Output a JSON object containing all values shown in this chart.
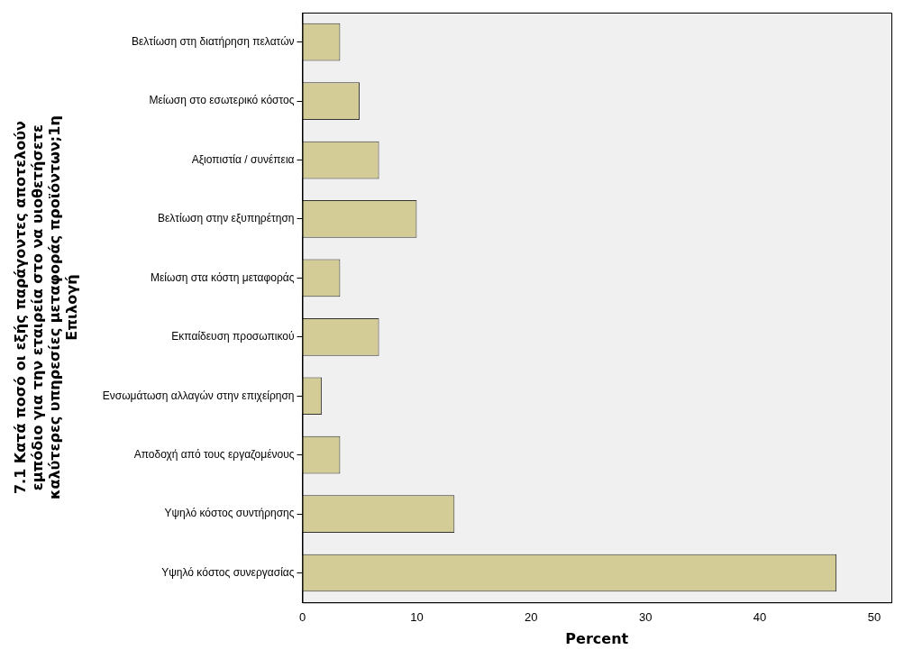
{
  "chart_data": {
    "type": "bar",
    "orientation": "horizontal",
    "xlabel": "Percent",
    "ylabel": "7.1 Κατά ποσό οι εξής παράγοντες αποτελούν\nεμπόδιο για την εταιρεία στο να υιοθετήσετε\nκαλύτερες υπηρεσίες μεταφοράς προϊόντων;1η\nΕπιλογή",
    "categories": [
      "Βελτίωση στη διατήρηση πελατών",
      "Μείωση στο εσωτερικό κόστος",
      "Αξιοπιστία / συνέπεια",
      "Βελτίωση στην εξυπηρέτηση",
      "Μείωση στα κόστη μεταφοράς",
      "Εκπαίδευση προσωπικού",
      "Ενσωμάτωση αλλαγών στην επιχείρηση",
      "Αποδοχή από τους εργαζομένους",
      "Υψηλό κόστος συντήρησης",
      "Υψηλό κόστος συνεργασίας"
    ],
    "values": [
      3.3,
      5.0,
      6.7,
      10.0,
      3.3,
      6.7,
      1.7,
      3.3,
      13.3,
      46.7
    ],
    "color": "#d3cc96",
    "xlim": [
      0,
      51.5
    ],
    "xticks": [
      0,
      10,
      20,
      30,
      40,
      50
    ],
    "grid": false,
    "legend": false
  }
}
